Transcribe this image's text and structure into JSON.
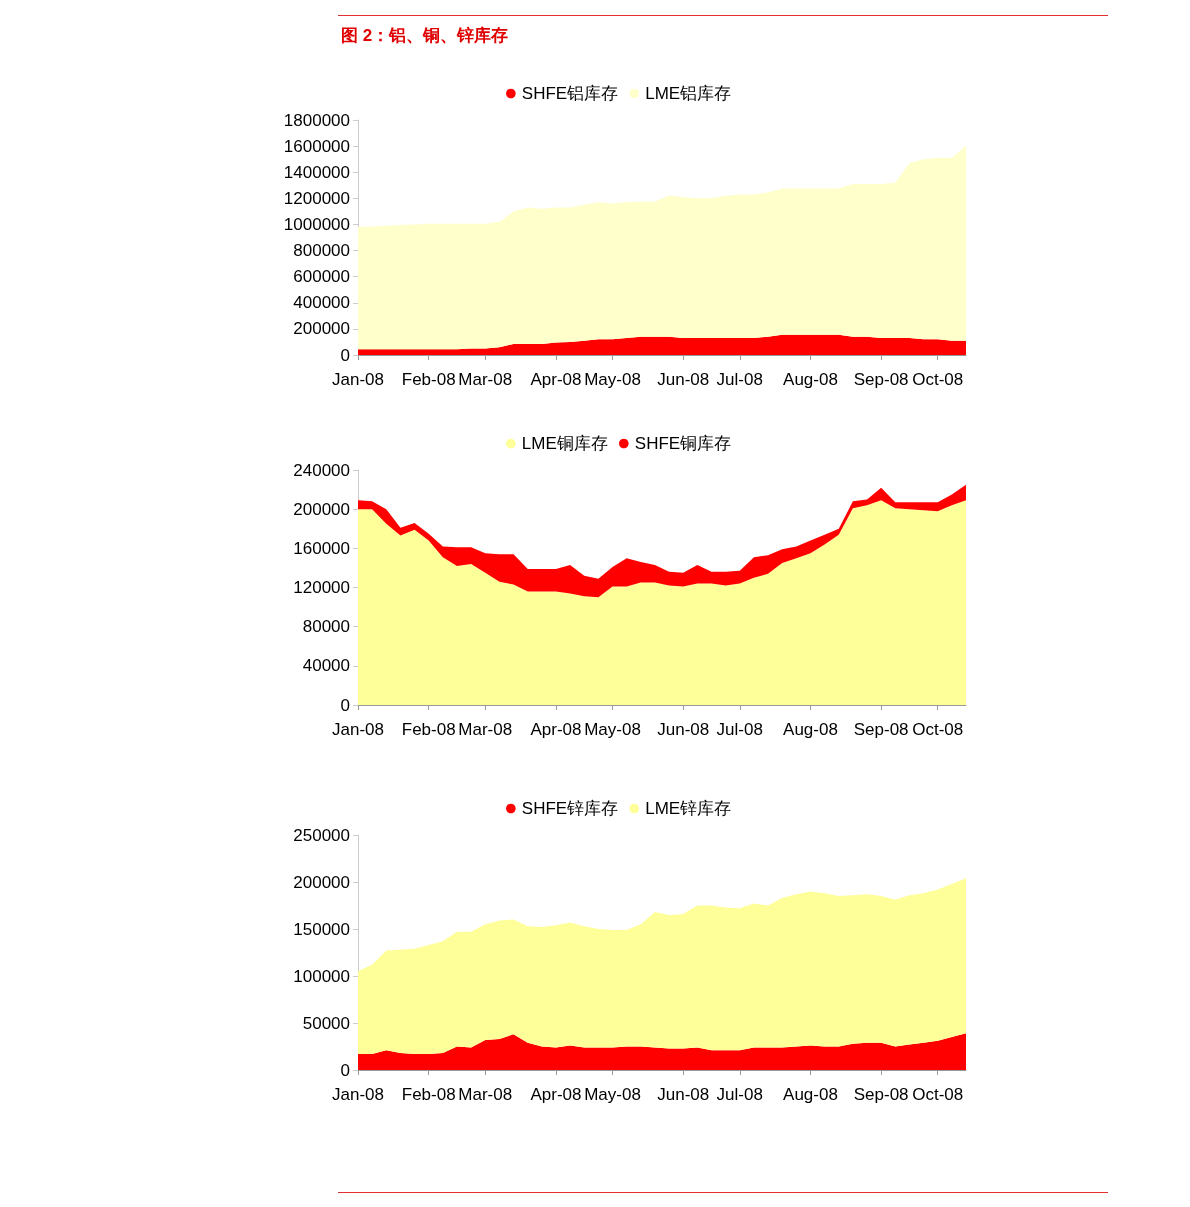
{
  "chart_data": [
    {
      "type": "area",
      "title": "图 2：铝、铜、锌库存",
      "stacked": true,
      "legend": "top",
      "grid": false,
      "categories": [
        "Jan-08",
        null,
        null,
        null,
        null,
        "Feb-08",
        null,
        null,
        null,
        "Mar-08",
        null,
        null,
        null,
        null,
        "Apr-08",
        null,
        null,
        null,
        "May-08",
        null,
        null,
        null,
        null,
        "Jun-08",
        null,
        null,
        null,
        "Jul-08",
        null,
        null,
        null,
        null,
        "Aug-08",
        null,
        null,
        null,
        null,
        "Sep-08",
        null,
        null,
        null,
        "Oct-08",
        null,
        null
      ],
      "ylim": [
        0,
        1800000
      ],
      "yticks": [
        0,
        200000,
        400000,
        600000,
        800000,
        1000000,
        1200000,
        1400000,
        1600000,
        1800000
      ],
      "series": [
        {
          "name": "SHFE铝库存",
          "color": "#ff0000",
          "values": [
            45000,
            45000,
            45000,
            45000,
            45000,
            45000,
            45000,
            45000,
            50000,
            50000,
            60000,
            85000,
            85000,
            85000,
            95000,
            100000,
            110000,
            120000,
            120000,
            130000,
            140000,
            140000,
            140000,
            130000,
            130000,
            130000,
            130000,
            130000,
            130000,
            140000,
            155000,
            155000,
            155000,
            155000,
            155000,
            140000,
            140000,
            130000,
            130000,
            130000,
            120000,
            120000,
            110000,
            110000
          ]
        },
        {
          "name": "LME铝库存",
          "color": "#ffffcc",
          "values": [
            935000,
            940000,
            945000,
            950000,
            955000,
            960000,
            960000,
            960000,
            955000,
            955000,
            960000,
            1015000,
            1045000,
            1035000,
            1035000,
            1030000,
            1040000,
            1050000,
            1040000,
            1040000,
            1035000,
            1035000,
            1080000,
            1080000,
            1070000,
            1070000,
            1090000,
            1100000,
            1100000,
            1105000,
            1120000,
            1120000,
            1120000,
            1120000,
            1120000,
            1170000,
            1170000,
            1180000,
            1190000,
            1340000,
            1380000,
            1390000,
            1400000,
            1490000
          ]
        }
      ]
    },
    {
      "type": "area",
      "stacked": true,
      "legend": "top",
      "grid": false,
      "categories": [
        "Jan-08",
        null,
        null,
        null,
        null,
        "Feb-08",
        null,
        null,
        null,
        "Mar-08",
        null,
        null,
        null,
        null,
        "Apr-08",
        null,
        null,
        null,
        "May-08",
        null,
        null,
        null,
        null,
        "Jun-08",
        null,
        null,
        null,
        "Jul-08",
        null,
        null,
        null,
        null,
        "Aug-08",
        null,
        null,
        null,
        null,
        "Sep-08",
        null,
        null,
        null,
        "Oct-08",
        null,
        null
      ],
      "ylim": [
        0,
        240000
      ],
      "yticks": [
        0,
        40000,
        80000,
        120000,
        160000,
        200000,
        240000
      ],
      "series": [
        {
          "name": "LME铜库存",
          "color": "#ffff99",
          "values": [
            200000,
            200000,
            185000,
            173000,
            179000,
            168000,
            151000,
            142000,
            144000,
            135000,
            126000,
            123000,
            116000,
            116000,
            116000,
            114000,
            111000,
            110000,
            121000,
            121000,
            125000,
            125000,
            122000,
            121000,
            124000,
            124000,
            122000,
            124000,
            130000,
            134000,
            145000,
            150000,
            155000,
            164000,
            174000,
            201000,
            204000,
            209000,
            201000,
            200000,
            199000,
            198000,
            204000,
            209000
          ]
        },
        {
          "name": "SHFE铜库存",
          "color": "#ff0000",
          "values": [
            9000,
            8000,
            15000,
            8000,
            7000,
            7000,
            11000,
            19000,
            17000,
            20000,
            28000,
            31000,
            23000,
            23000,
            23000,
            29000,
            21000,
            19000,
            20000,
            29000,
            21000,
            18000,
            14000,
            14000,
            19000,
            12000,
            14000,
            13000,
            21000,
            19000,
            14000,
            12000,
            13000,
            10000,
            6000,
            7000,
            6000,
            13000,
            6000,
            7000,
            8000,
            9000,
            11000,
            16000
          ]
        }
      ]
    },
    {
      "type": "area",
      "stacked": true,
      "legend": "top",
      "grid": false,
      "categories": [
        "Jan-08",
        null,
        null,
        null,
        null,
        "Feb-08",
        null,
        null,
        null,
        "Mar-08",
        null,
        null,
        null,
        null,
        "Apr-08",
        null,
        null,
        null,
        "May-08",
        null,
        null,
        null,
        null,
        "Jun-08",
        null,
        null,
        null,
        "Jul-08",
        null,
        null,
        null,
        null,
        "Aug-08",
        null,
        null,
        null,
        null,
        "Sep-08",
        null,
        null,
        null,
        "Oct-08",
        null,
        null
      ],
      "ylim": [
        0,
        250000
      ],
      "yticks": [
        0,
        50000,
        100000,
        150000,
        200000,
        250000
      ],
      "series": [
        {
          "name": "SHFE锌库存",
          "color": "#ff0000",
          "values": [
            17000,
            17000,
            21000,
            18000,
            17000,
            17000,
            18000,
            25000,
            24000,
            32000,
            33000,
            38000,
            29000,
            25000,
            24000,
            26000,
            24000,
            24000,
            24000,
            25000,
            25000,
            24000,
            23000,
            23000,
            24000,
            21000,
            21000,
            21000,
            24000,
            24000,
            24000,
            25000,
            26000,
            25000,
            25000,
            28000,
            29000,
            29000,
            25000,
            27000,
            29000,
            31000,
            35000,
            39000
          ]
        },
        {
          "name": "LME锌库存",
          "color": "#ffff99",
          "values": [
            88000,
            95000,
            106000,
            110000,
            112000,
            116000,
            119000,
            122000,
            123000,
            123000,
            126000,
            122000,
            124000,
            127000,
            130000,
            131000,
            129000,
            126000,
            125000,
            124000,
            130000,
            144000,
            142000,
            143000,
            151000,
            154000,
            152000,
            151000,
            153000,
            151000,
            159000,
            162000,
            164000,
            163000,
            160000,
            158000,
            158000,
            156000,
            156000,
            159000,
            159000,
            161000,
            163000,
            165000
          ]
        }
      ]
    }
  ]
}
